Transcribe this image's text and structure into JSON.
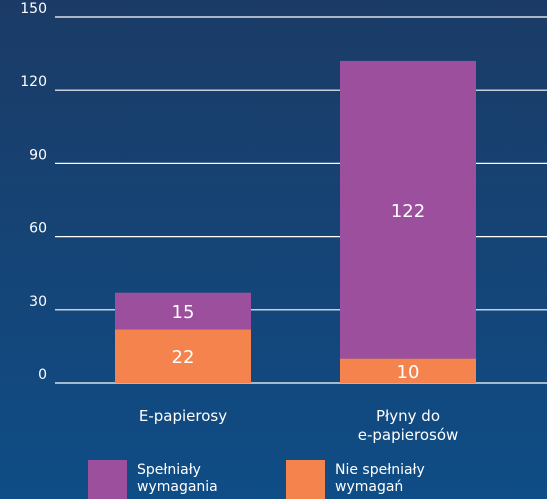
{
  "chart_data": {
    "type": "bar",
    "stacked": true,
    "title": "",
    "xlabel": "",
    "ylabel": "",
    "ylim": [
      0,
      150
    ],
    "yticks": [
      "0",
      "30",
      "60",
      "90",
      "120",
      "150"
    ],
    "grid": true,
    "legend_position": "bottom",
    "categories": [
      [
        "E-papierosy"
      ],
      [
        "Płyny do",
        "e-papierosów"
      ]
    ],
    "series": [
      {
        "name": [
          "Nie spełniały",
          "wymagań"
        ],
        "values": [
          22,
          10
        ],
        "labels": [
          "22",
          "10"
        ],
        "color": "#f5834d"
      },
      {
        "name": [
          "Spełniały",
          "wymagania"
        ],
        "values": [
          15,
          122
        ],
        "labels": [
          "15",
          "122"
        ],
        "color": "#9b4f9c"
      }
    ],
    "legend_order": [
      1,
      0
    ]
  },
  "colors": {
    "background_top": "#1b3b66",
    "background_bottom": "#0f4d86",
    "gridline": "#ffffff",
    "text": "#ffffff"
  }
}
